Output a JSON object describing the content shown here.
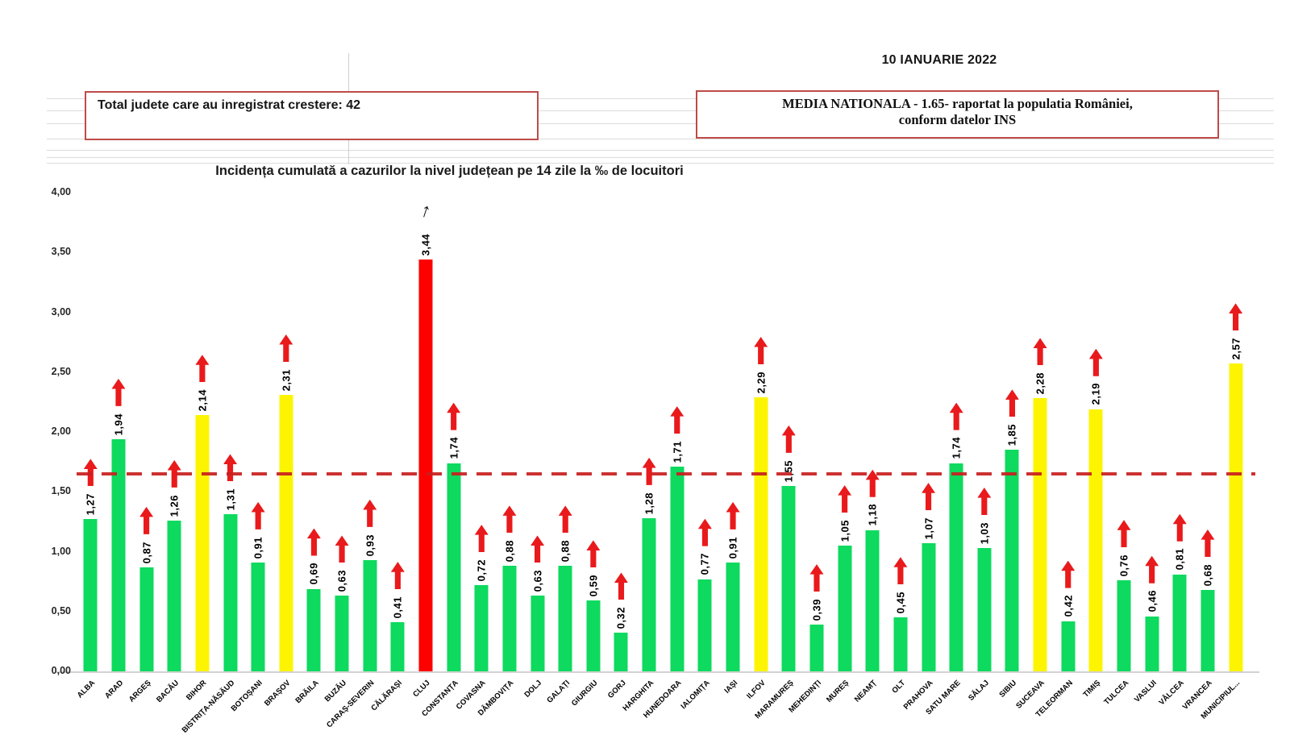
{
  "header": {
    "date": "10 IANUARIE 2022",
    "total_box_text": "Total judete care au inregistrat crestere: 42",
    "media_box_line1": "MEDIA NATIONALA - 1.65-  raportat la populatia României,",
    "media_box_line2": "conform datelor INS"
  },
  "chart_data": {
    "type": "bar",
    "title": "Incidența cumulată a cazurilor la nivel județean pe 14 zile la ‰ de locuitori",
    "ylim": [
      0,
      4
    ],
    "ytick_labels": [
      "4,00",
      "3,50",
      "3,00",
      "2,50",
      "2,00",
      "1,50",
      "1,00",
      "0,50",
      "0,00"
    ],
    "grid": "off",
    "reference_line": {
      "name": "media nationala",
      "value": 1.65,
      "style": "dashed",
      "color": "#c81f1f"
    },
    "colors": {
      "green": "#0dda5e",
      "yellow": "#fcf400",
      "red": "#fe0000",
      "arrow_red": "#e91a1c",
      "arrow_black": "#111111"
    },
    "categories": [
      "ALBA",
      "ARAD",
      "ARGEȘ",
      "BACĂU",
      "BIHOR",
      "BISTRIȚA-NĂSĂUD",
      "BOTOȘANI",
      "BRAȘOV",
      "BRĂILA",
      "BUZĂU",
      "CARAȘ-SEVERIN",
      "CĂLĂRAȘI",
      "CLUJ",
      "CONSTANȚA",
      "COVASNA",
      "DÂMBOVIȚA",
      "DOLJ",
      "GALAȚI",
      "GIURGIU",
      "GORJ",
      "HARGHITA",
      "HUNEDOARA",
      "IALOMIȚA",
      "IAȘI",
      "ILFOV",
      "MARAMUREȘ",
      "MEHEDINȚI",
      "MUREȘ",
      "NEAMȚ",
      "OLT",
      "PRAHOVA",
      "SATU MARE",
      "SĂLAJ",
      "SIBIU",
      "SUCEAVA",
      "TELEORMAN",
      "TIMIȘ",
      "TULCEA",
      "VASLUI",
      "VÂLCEA",
      "VRANCEA",
      "MUNICIPIUL..."
    ],
    "values": [
      1.27,
      1.94,
      0.87,
      1.26,
      2.14,
      1.31,
      0.91,
      2.31,
      0.69,
      0.63,
      0.93,
      0.41,
      3.44,
      1.74,
      0.72,
      0.88,
      0.63,
      0.88,
      0.59,
      0.32,
      1.28,
      1.71,
      0.77,
      0.91,
      2.29,
      1.55,
      0.39,
      1.05,
      1.18,
      0.45,
      1.07,
      1.74,
      1.03,
      1.85,
      2.28,
      0.42,
      2.19,
      0.76,
      0.46,
      0.81,
      0.68,
      2.57
    ],
    "labels": [
      "1,27",
      "1,94",
      "0,87",
      "1,26",
      "2,14",
      "1,31",
      "0,91",
      "2,31",
      "0,69",
      "0,63",
      "0,93",
      "0,41",
      "3,44",
      "1,74",
      "0,72",
      "0,88",
      "0,63",
      "0,88",
      "0,59",
      "0,32",
      "1,28",
      "1,71",
      "0,77",
      "0,91",
      "2,29",
      "1,55",
      "0,39",
      "1,05",
      "1,18",
      "0,45",
      "1,07",
      "1,74",
      "1,03",
      "1,85",
      "2,28",
      "0,42",
      "2,19",
      "0,76",
      "0,46",
      "0,81",
      "0,68",
      "2,57"
    ],
    "bar_colors": [
      "green",
      "green",
      "green",
      "green",
      "yellow",
      "green",
      "green",
      "yellow",
      "green",
      "green",
      "green",
      "green",
      "red",
      "green",
      "green",
      "green",
      "green",
      "green",
      "green",
      "green",
      "green",
      "green",
      "green",
      "green",
      "yellow",
      "green",
      "green",
      "green",
      "green",
      "green",
      "green",
      "green",
      "green",
      "green",
      "yellow",
      "green",
      "yellow",
      "green",
      "green",
      "green",
      "green",
      "yellow"
    ],
    "arrows": [
      "red",
      "red",
      "red",
      "red",
      "red",
      "red",
      "red",
      "red",
      "red",
      "red",
      "red",
      "red",
      "black",
      "red",
      "red",
      "red",
      "red",
      "red",
      "red",
      "red",
      "red",
      "red",
      "red",
      "red",
      "red",
      "red",
      "red",
      "red",
      "red",
      "red",
      "red",
      "red",
      "red",
      "red",
      "red",
      "red",
      "red",
      "red",
      "red",
      "red",
      "red",
      "red"
    ]
  }
}
